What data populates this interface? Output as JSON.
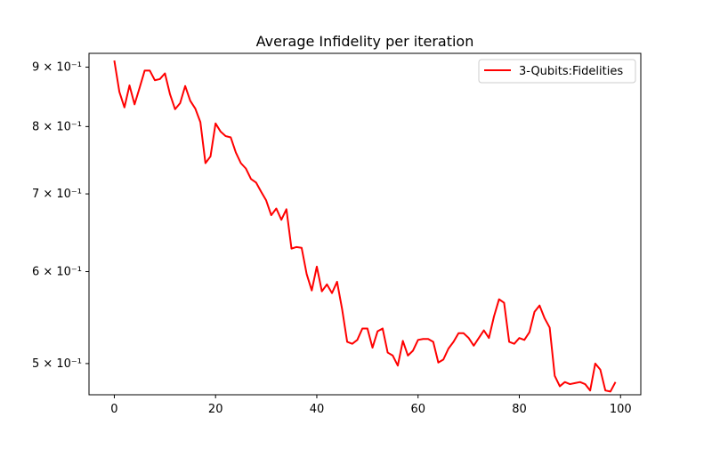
{
  "chart_data": {
    "type": "line",
    "title": "Average Infidelity per iteration",
    "xlabel": "",
    "ylabel": "",
    "xlim": [
      -5,
      104
    ],
    "ylim": [
      0.47,
      0.925
    ],
    "yscale": "log",
    "xticks": [
      0,
      20,
      40,
      60,
      80,
      100
    ],
    "xtick_labels": [
      "0",
      "20",
      "40",
      "60",
      "80",
      "100"
    ],
    "yticks": [
      0.5,
      0.6,
      0.7,
      0.8,
      0.9
    ],
    "ytick_labels": [
      "5 × 10⁻¹",
      "6 × 10⁻¹",
      "7 × 10⁻¹",
      "8 × 10⁻¹",
      "9 × 10⁻¹"
    ],
    "legend_position": "top-right",
    "grid": false,
    "series": [
      {
        "name": "3-Qubits:Fidelities",
        "color": "#ff0000",
        "x": [
          0,
          1,
          2,
          3,
          4,
          5,
          6,
          7,
          8,
          9,
          10,
          11,
          12,
          13,
          14,
          15,
          16,
          17,
          18,
          19,
          20,
          21,
          22,
          23,
          24,
          25,
          26,
          27,
          28,
          29,
          30,
          31,
          32,
          33,
          34,
          35,
          36,
          37,
          38,
          39,
          40,
          41,
          42,
          43,
          44,
          45,
          46,
          47,
          48,
          49,
          50,
          51,
          52,
          53,
          54,
          55,
          56,
          57,
          58,
          59,
          60,
          61,
          62,
          63,
          64,
          65,
          66,
          67,
          68,
          69,
          70,
          71,
          72,
          73,
          74,
          75,
          76,
          77,
          78,
          79,
          80,
          81,
          82,
          83,
          84,
          85,
          86,
          87,
          88,
          89,
          90,
          91,
          92,
          93,
          94,
          95,
          96,
          97,
          98,
          99
        ],
        "values": [
          0.912,
          0.857,
          0.831,
          0.868,
          0.836,
          0.864,
          0.894,
          0.894,
          0.877,
          0.879,
          0.889,
          0.853,
          0.828,
          0.838,
          0.867,
          0.842,
          0.829,
          0.807,
          0.744,
          0.754,
          0.805,
          0.792,
          0.785,
          0.783,
          0.76,
          0.744,
          0.736,
          0.721,
          0.716,
          0.703,
          0.691,
          0.671,
          0.68,
          0.665,
          0.679,
          0.628,
          0.63,
          0.629,
          0.597,
          0.578,
          0.606,
          0.577,
          0.585,
          0.575,
          0.588,
          0.557,
          0.522,
          0.52,
          0.524,
          0.536,
          0.536,
          0.516,
          0.533,
          0.536,
          0.511,
          0.508,
          0.498,
          0.523,
          0.508,
          0.513,
          0.524,
          0.525,
          0.525,
          0.522,
          0.501,
          0.504,
          0.515,
          0.522,
          0.531,
          0.531,
          0.526,
          0.518,
          0.526,
          0.534,
          0.526,
          0.549,
          0.568,
          0.564,
          0.522,
          0.52,
          0.526,
          0.524,
          0.532,
          0.554,
          0.561,
          0.547,
          0.537,
          0.488,
          0.478,
          0.482,
          0.48,
          0.481,
          0.482,
          0.48,
          0.474,
          0.5,
          0.494,
          0.474,
          0.473,
          0.482
        ]
      }
    ]
  }
}
